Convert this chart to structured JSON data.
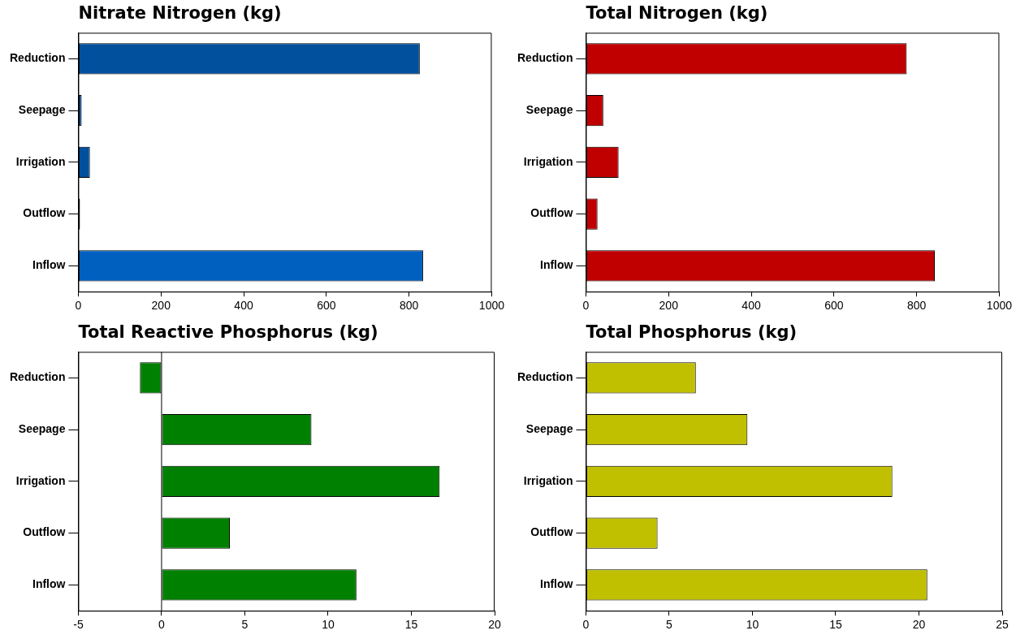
{
  "chart_data": [
    {
      "type": "bar",
      "orientation": "horizontal",
      "title": "Nitrate Nitrogen (kg)",
      "categories": [
        "Reduction",
        "Seepage",
        "Irrigation",
        "Outflow",
        "Inflow"
      ],
      "values": [
        826,
        8,
        28,
        4,
        834
      ],
      "colors": [
        "#00509e",
        "#00509e",
        "#00509e",
        "#000000",
        "#0060c0"
      ],
      "xlim": [
        0,
        1000
      ],
      "xticks": [
        0,
        200,
        400,
        600,
        800,
        1000
      ],
      "grid": false
    },
    {
      "type": "bar",
      "orientation": "horizontal",
      "title": "Total Nitrogen (kg)",
      "categories": [
        "Reduction",
        "Seepage",
        "Irrigation",
        "Outflow",
        "Inflow"
      ],
      "values": [
        776,
        42,
        79,
        28,
        844
      ],
      "color": "#c00000",
      "xlim": [
        0,
        1000
      ],
      "xticks": [
        0,
        200,
        400,
        600,
        800,
        1000
      ],
      "grid": false
    },
    {
      "type": "bar",
      "orientation": "horizontal",
      "title": "Total Reactive Phosphorus (kg)",
      "categories": [
        "Reduction",
        "Seepage",
        "Irrigation",
        "Outflow",
        "Inflow"
      ],
      "values": [
        -1.3,
        9.0,
        16.7,
        4.1,
        11.7
      ],
      "color": "#008000",
      "xlim": [
        -5,
        20
      ],
      "xticks": [
        -5,
        0,
        5,
        10,
        15,
        20
      ],
      "grid": false,
      "ref_lines": [
        {
          "axis": "x",
          "value": 0,
          "color": "#000000"
        }
      ]
    },
    {
      "type": "bar",
      "orientation": "horizontal",
      "title": "Total Phosphorus (kg)",
      "categories": [
        "Reduction",
        "Seepage",
        "Irrigation",
        "Outflow",
        "Inflow"
      ],
      "values": [
        6.6,
        9.7,
        18.4,
        4.3,
        20.5
      ],
      "color": "#c0c000",
      "xlim": [
        0,
        25
      ],
      "xticks": [
        0,
        5,
        10,
        15,
        20,
        25
      ],
      "grid": false
    }
  ]
}
